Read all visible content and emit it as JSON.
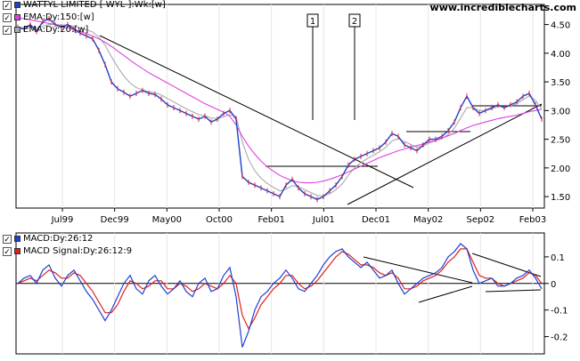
{
  "site": "www.incrediblecharts.com",
  "price_panel": {
    "legend": [
      {
        "label": "WATTYL LIMITED [ WYL ]:Wk:[w]",
        "color": "#1f3fd1"
      },
      {
        "label": "EMA:Dy:150:[w]",
        "color": "#e040e0"
      },
      {
        "label": "EMA:Dy:20:[w]",
        "color": "#aaaaaa"
      }
    ]
  },
  "macd_panel": {
    "legend": [
      {
        "label": "MACD:Dy:26:12",
        "color": "#1f3fd1"
      },
      {
        "label": "MACD Signal:Dy:26:12:9",
        "color": "#e02020"
      }
    ]
  },
  "chart_data": [
    {
      "type": "line",
      "name": "price",
      "xticks": [
        "Jul99",
        "Dec99",
        "May00",
        "Oct00",
        "Feb01",
        "Jul01",
        "Dec01",
        "May02",
        "Sep02",
        "Feb03"
      ],
      "yticks": [
        "1.50",
        "2.00",
        "2.50",
        "3.00",
        "3.50",
        "4.00",
        "4.50"
      ],
      "ylim": [
        1.3,
        4.85
      ],
      "markers": [
        "1",
        "2"
      ],
      "series": [
        {
          "color": "#1f3fd1",
          "values": [
            4.45,
            4.42,
            4.5,
            4.38,
            4.55,
            4.6,
            4.5,
            4.45,
            4.5,
            4.42,
            4.35,
            4.3,
            4.25,
            4.05,
            3.8,
            3.5,
            3.38,
            3.32,
            3.25,
            3.3,
            3.35,
            3.3,
            3.28,
            3.2,
            3.1,
            3.05,
            3.0,
            2.95,
            2.9,
            2.85,
            2.9,
            2.8,
            2.85,
            2.95,
            3.0,
            2.85,
            1.85,
            1.75,
            1.7,
            1.65,
            1.6,
            1.55,
            1.5,
            1.7,
            1.8,
            1.65,
            1.55,
            1.5,
            1.45,
            1.5,
            1.6,
            1.7,
            1.85,
            2.05,
            2.15,
            2.2,
            2.25,
            2.3,
            2.35,
            2.45,
            2.6,
            2.55,
            2.4,
            2.35,
            2.3,
            2.4,
            2.5,
            2.5,
            2.55,
            2.65,
            2.8,
            3.05,
            3.25,
            3.05,
            2.95,
            3.0,
            3.05,
            3.1,
            3.05,
            3.1,
            3.15,
            3.25,
            3.3,
            3.1,
            2.85
          ]
        },
        {
          "color": "#e040e0",
          "values": [
            4.62,
            4.6,
            4.58,
            4.56,
            4.54,
            4.52,
            4.5,
            4.47,
            4.44,
            4.41,
            4.38,
            4.34,
            4.3,
            4.25,
            4.19,
            4.12,
            4.04,
            3.96,
            3.88,
            3.8,
            3.73,
            3.66,
            3.6,
            3.54,
            3.48,
            3.42,
            3.36,
            3.3,
            3.24,
            3.18,
            3.12,
            3.07,
            3.02,
            2.97,
            2.9,
            2.75,
            2.55,
            2.38,
            2.24,
            2.12,
            2.02,
            1.94,
            1.87,
            1.82,
            1.78,
            1.75,
            1.74,
            1.74,
            1.75,
            1.77,
            1.8,
            1.84,
            1.88,
            1.93,
            1.98,
            2.03,
            2.08,
            2.13,
            2.18,
            2.22,
            2.26,
            2.3,
            2.33,
            2.36,
            2.39,
            2.42,
            2.45,
            2.48,
            2.52,
            2.56,
            2.6,
            2.65,
            2.7,
            2.74,
            2.77,
            2.8,
            2.83,
            2.86,
            2.88,
            2.9,
            2.92,
            2.95,
            2.98,
            3.0,
            3.02
          ]
        },
        {
          "color": "#aaaaaa",
          "values": [
            4.45,
            4.44,
            4.46,
            4.44,
            4.47,
            4.5,
            4.5,
            4.49,
            4.49,
            4.47,
            4.44,
            4.41,
            4.37,
            4.28,
            4.14,
            3.94,
            3.76,
            3.6,
            3.48,
            3.4,
            3.36,
            3.33,
            3.31,
            3.27,
            3.21,
            3.15,
            3.09,
            3.03,
            2.98,
            2.93,
            2.91,
            2.87,
            2.86,
            2.89,
            2.93,
            2.9,
            2.45,
            2.15,
            1.95,
            1.82,
            1.73,
            1.66,
            1.6,
            1.63,
            1.69,
            1.67,
            1.62,
            1.57,
            1.52,
            1.51,
            1.55,
            1.62,
            1.72,
            1.87,
            2.0,
            2.09,
            2.16,
            2.22,
            2.28,
            2.36,
            2.47,
            2.51,
            2.46,
            2.41,
            2.36,
            2.38,
            2.44,
            2.47,
            2.51,
            2.58,
            2.69,
            2.87,
            3.05,
            3.05,
            3.0,
            3.0,
            3.03,
            3.07,
            3.06,
            3.08,
            3.12,
            3.19,
            3.25,
            3.18,
            3.02
          ]
        }
      ]
    },
    {
      "type": "line",
      "name": "macd",
      "yticks": [
        "0.1",
        "0",
        "-0.1",
        "-0.2"
      ],
      "ylim": [
        -0.265,
        0.19
      ],
      "series": [
        {
          "color": "#1f3fd1",
          "values": [
            0.0,
            0.02,
            0.03,
            0.0,
            0.05,
            0.07,
            0.02,
            -0.01,
            0.03,
            0.05,
            0.01,
            -0.03,
            -0.06,
            -0.1,
            -0.14,
            -0.1,
            -0.05,
            0.0,
            0.03,
            -0.02,
            -0.04,
            0.01,
            0.03,
            -0.01,
            -0.04,
            -0.02,
            0.01,
            -0.03,
            -0.05,
            0.0,
            0.02,
            -0.03,
            -0.02,
            0.03,
            0.06,
            -0.05,
            -0.24,
            -0.18,
            -0.1,
            -0.05,
            -0.03,
            0.0,
            0.02,
            0.05,
            0.02,
            -0.02,
            -0.03,
            0.0,
            0.03,
            0.07,
            0.1,
            0.12,
            0.13,
            0.1,
            0.08,
            0.06,
            0.08,
            0.05,
            0.02,
            0.03,
            0.05,
            0.0,
            -0.04,
            -0.02,
            0.0,
            0.02,
            0.03,
            0.04,
            0.06,
            0.1,
            0.12,
            0.15,
            0.13,
            0.05,
            0.0,
            0.01,
            0.02,
            -0.01,
            -0.01,
            0.0,
            0.02,
            0.03,
            0.05,
            0.02,
            -0.02
          ]
        },
        {
          "color": "#e02020",
          "values": [
            0.0,
            0.01,
            0.02,
            0.01,
            0.03,
            0.05,
            0.04,
            0.02,
            0.02,
            0.04,
            0.03,
            0.0,
            -0.03,
            -0.07,
            -0.11,
            -0.11,
            -0.08,
            -0.03,
            0.01,
            0.0,
            -0.02,
            -0.01,
            0.01,
            0.01,
            -0.02,
            -0.02,
            0.0,
            -0.01,
            -0.03,
            -0.02,
            0.0,
            -0.01,
            -0.02,
            0.0,
            0.03,
            0.0,
            -0.12,
            -0.17,
            -0.13,
            -0.08,
            -0.05,
            -0.02,
            0.0,
            0.03,
            0.03,
            0.0,
            -0.02,
            -0.01,
            0.01,
            0.04,
            0.07,
            0.1,
            0.12,
            0.11,
            0.09,
            0.07,
            0.07,
            0.06,
            0.04,
            0.03,
            0.04,
            0.02,
            -0.02,
            -0.02,
            -0.01,
            0.01,
            0.02,
            0.03,
            0.05,
            0.08,
            0.1,
            0.13,
            0.13,
            0.08,
            0.03,
            0.02,
            0.02,
            0.0,
            -0.01,
            0.0,
            0.01,
            0.02,
            0.04,
            0.03,
            0.0
          ]
        }
      ]
    }
  ]
}
